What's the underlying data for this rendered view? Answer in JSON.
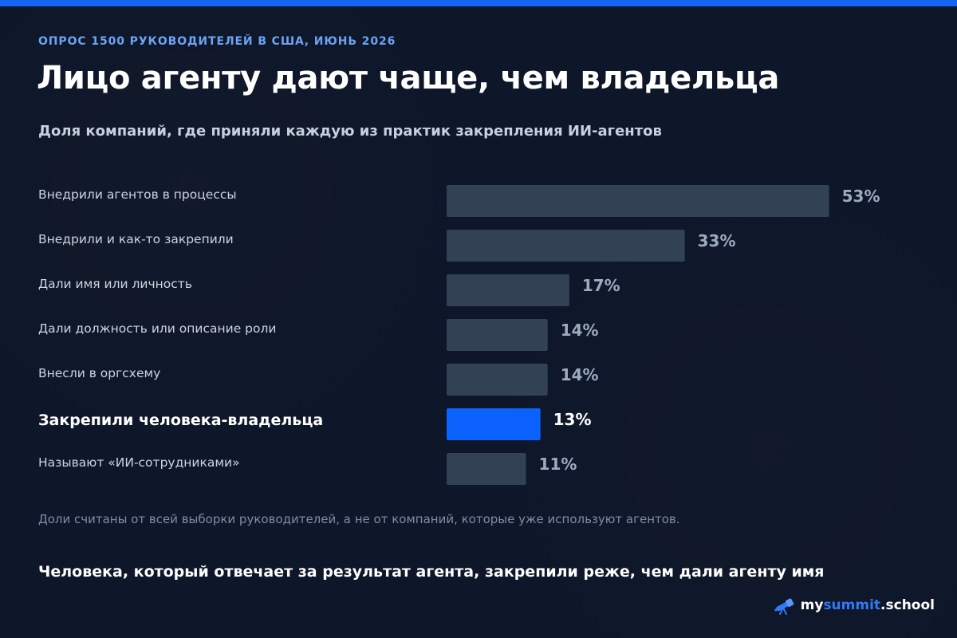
{
  "header": {
    "kicker": "ОПРОС 1500 РУКОВОДИТЕЛЕЙ В США, ИЮНЬ 2026",
    "title": "Лицо агенту дают чаще, чем владельца",
    "subtitle": "Доля компаний, где приняли каждую из практик закрепления ИИ-агентов"
  },
  "chart_data": {
    "type": "bar",
    "orientation": "horizontal",
    "categories": [
      "Внедрили агентов в процессы",
      "Внедрили и как-то закрепили",
      "Дали имя или личность",
      "Дали должность или описание роли",
      "Внесли в оргсхему",
      "Закрепили человека-владельца",
      "Называют «ИИ-сотрудниками»"
    ],
    "values": [
      53,
      33,
      17,
      14,
      14,
      13,
      11
    ],
    "value_labels": [
      "53%",
      "33%",
      "17%",
      "14%",
      "14%",
      "13%",
      "11%"
    ],
    "highlight_index": 5,
    "unit": "%",
    "xlim": [
      0,
      100
    ],
    "grid": false,
    "colors": {
      "bar": "#334155",
      "highlight": "#0b62ff"
    }
  },
  "footnote": "Доли считаны от всей выборки руководителей, а не от компаний, которые уже используют агентов.",
  "conclusion": "Человека, который отвечает за результат агента, закрепили реже, чем дали агенту имя",
  "brand": {
    "part_a": "my",
    "part_b": "summit",
    "part_c": ".school",
    "icon": "telescope-icon"
  },
  "colors": {
    "background": "#0e1629",
    "accent": "#1565f2",
    "kicker": "#6ea3f2"
  }
}
